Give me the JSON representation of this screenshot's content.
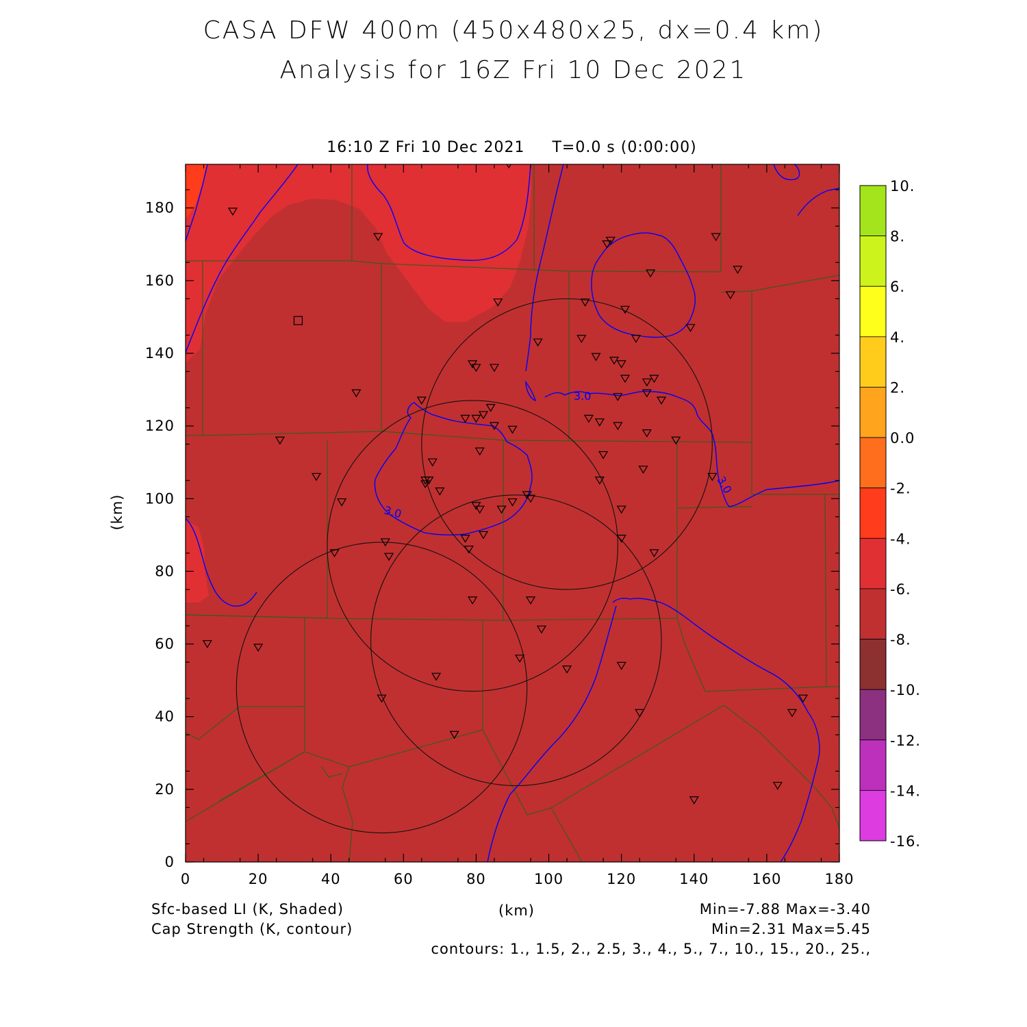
{
  "title": {
    "line1": "CASA DFW 400m (450x480x25, dx=0.4 km)",
    "line2": "Analysis for 16Z Fri 10 Dec 2021"
  },
  "subtitle": {
    "time": "16:10 Z Fri 10 Dec 2021",
    "elapsed": "T=0.0 s (0:00:00)"
  },
  "axes": {
    "x_label": "(km)",
    "y_label": "(km)",
    "x_ticks": [
      "0",
      "20",
      "40",
      "60",
      "80",
      "100",
      "120",
      "140",
      "160",
      "180"
    ],
    "y_ticks": [
      "0",
      "20",
      "40",
      "60",
      "80",
      "100",
      "120",
      "140",
      "160",
      "180"
    ],
    "xlim": [
      0,
      180
    ],
    "ylim": [
      0,
      192
    ]
  },
  "colorbar": {
    "labels": [
      "10.",
      "8.",
      "6.",
      "4.",
      "2.",
      "0.0",
      "-2.",
      "-4.",
      "-6.",
      "-8.",
      "-10.",
      "-12.",
      "-14.",
      "-16."
    ],
    "colors": [
      "#a4e41c",
      "#ccf41c",
      "#ffff1c",
      "#ffcc1c",
      "#ffa41c",
      "#ff6e1c",
      "#ff3c1c",
      "#e03034",
      "#c03030",
      "#8c3030",
      "#8c3080",
      "#bc30bc",
      "#dc3ce0"
    ]
  },
  "field": {
    "dominant_color": "#c03030",
    "warm_color": "#e03034",
    "hot_color": "#ff3c1c",
    "cap_contour_color": "#0000ff",
    "cap_contour_label": "3.0",
    "county_line_color": "#3c5a1e"
  },
  "footer": {
    "shaded_label": "Sfc-based LI (K, Shaded)",
    "contour_label": "Cap Strength (K, contour)",
    "x_unit": "(km)",
    "shaded_range": "Min=-7.88 Max=-3.40",
    "contour_range": "Min=2.31 Max=5.45",
    "contours": "contours: 1., 1.5, 2., 2.5, 3., 4., 5., 7., 10., 15., 20., 25.,"
  },
  "radars": [
    {
      "cx": 105,
      "cy": 115
    },
    {
      "cx": 79,
      "cy": 87
    },
    {
      "cx": 91,
      "cy": 61
    },
    {
      "cx": 54,
      "cy": 48
    }
  ],
  "stations": [
    [
      89,
      192
    ],
    [
      13,
      179
    ],
    [
      53,
      172
    ],
    [
      86,
      154
    ],
    [
      128,
      162
    ],
    [
      146,
      172
    ],
    [
      152,
      163
    ],
    [
      150,
      156
    ],
    [
      110,
      154
    ],
    [
      121,
      152
    ],
    [
      116,
      170
    ],
    [
      117,
      171
    ],
    [
      109,
      144
    ],
    [
      124,
      144
    ],
    [
      97,
      143
    ],
    [
      139,
      147
    ],
    [
      113,
      139
    ],
    [
      118,
      138
    ],
    [
      120,
      137
    ],
    [
      79,
      137
    ],
    [
      80,
      136
    ],
    [
      85,
      136
    ],
    [
      121,
      133
    ],
    [
      127,
      132
    ],
    [
      129,
      133
    ],
    [
      119,
      128
    ],
    [
      127,
      129
    ],
    [
      131,
      127
    ],
    [
      65,
      127
    ],
    [
      47,
      129
    ],
    [
      84,
      125
    ],
    [
      77,
      122
    ],
    [
      80,
      122
    ],
    [
      82,
      123
    ],
    [
      85,
      120
    ],
    [
      90,
      119
    ],
    [
      111,
      122
    ],
    [
      114,
      121
    ],
    [
      119,
      120
    ],
    [
      127,
      118
    ],
    [
      135,
      116
    ],
    [
      26,
      116
    ],
    [
      81,
      113
    ],
    [
      115,
      112
    ],
    [
      68,
      110
    ],
    [
      126,
      108
    ],
    [
      36,
      106
    ],
    [
      114,
      105
    ],
    [
      145,
      106
    ],
    [
      66,
      105
    ],
    [
      67,
      105
    ],
    [
      66,
      104
    ],
    [
      70,
      102
    ],
    [
      94,
      101
    ],
    [
      95,
      100
    ],
    [
      90,
      99
    ],
    [
      43,
      99
    ],
    [
      80,
      98
    ],
    [
      81,
      97
    ],
    [
      87,
      97
    ],
    [
      120,
      97
    ],
    [
      55,
      88
    ],
    [
      41,
      85
    ],
    [
      56,
      84
    ],
    [
      77,
      89
    ],
    [
      82,
      90
    ],
    [
      78,
      86
    ],
    [
      120,
      89
    ],
    [
      129,
      85
    ],
    [
      79,
      72
    ],
    [
      95,
      72
    ],
    [
      98,
      64
    ],
    [
      6,
      60
    ],
    [
      20,
      59
    ],
    [
      120,
      54
    ],
    [
      92,
      56
    ],
    [
      105,
      53
    ],
    [
      69,
      51
    ],
    [
      54,
      45
    ],
    [
      170,
      45
    ],
    [
      125,
      41
    ],
    [
      167,
      41
    ],
    [
      74,
      35
    ],
    [
      163,
      21
    ],
    [
      140,
      17
    ]
  ],
  "square_marker": [
    31,
    149
  ]
}
